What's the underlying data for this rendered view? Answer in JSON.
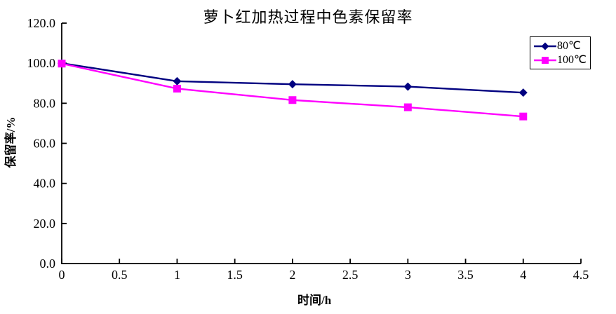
{
  "chart_data": {
    "type": "line",
    "title": "萝卜红加热过程中色素保留率",
    "xlabel": "时间/h",
    "ylabel": "保留率/%",
    "x": [
      0,
      1,
      2,
      3,
      4
    ],
    "series": [
      {
        "name": "80℃",
        "values": [
          100.0,
          91.0,
          89.5,
          88.3,
          85.3
        ],
        "color": "#000080",
        "marker": "diamond"
      },
      {
        "name": "100℃",
        "values": [
          99.8,
          87.3,
          81.6,
          78.0,
          73.4
        ],
        "color": "#ff00ff",
        "marker": "square"
      }
    ],
    "xlim": [
      0,
      4.5
    ],
    "ylim": [
      0,
      120
    ],
    "x_ticks": [
      "0",
      "0.5",
      "1",
      "1.5",
      "2",
      "2.5",
      "3",
      "3.5",
      "4",
      "4.5"
    ],
    "y_ticks": [
      "0.0",
      "20.0",
      "40.0",
      "60.0",
      "80.0",
      "100.0",
      "120.0"
    ],
    "grid": false,
    "legend_position": "top-right",
    "axis_color": "#000000",
    "text_color": "#000000",
    "background_color": "#ffffff"
  }
}
